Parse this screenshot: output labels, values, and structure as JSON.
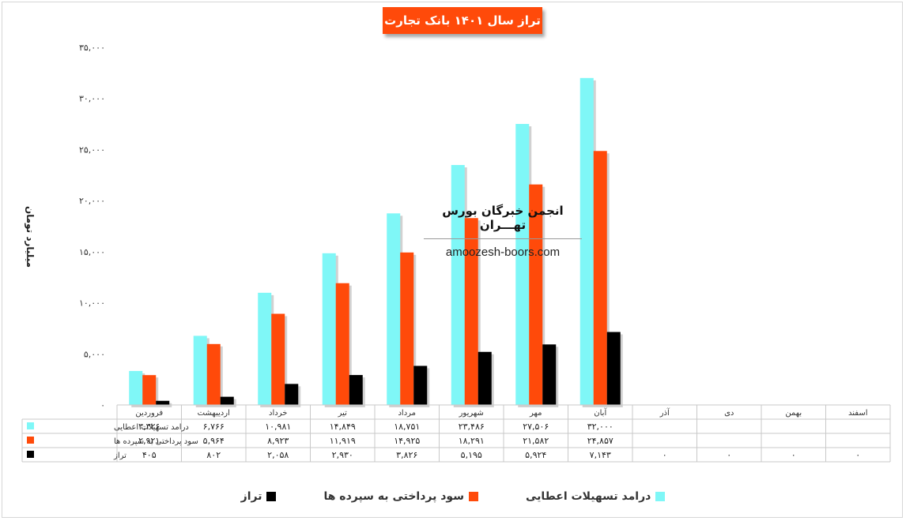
{
  "chart_data": {
    "type": "bar",
    "title": "تراز سال ۱۴۰۱ بانک تجارت",
    "ylabel": "میلیارد تومان",
    "ylim": [
      0,
      35000
    ],
    "yticks": [
      "۰",
      "۵,۰۰۰",
      "۱۰,۰۰۰",
      "۱۵,۰۰۰",
      "۲۰,۰۰۰",
      "۲۵,۰۰۰",
      "۳۰,۰۰۰",
      "۳۵,۰۰۰"
    ],
    "ytick_values": [
      0,
      5000,
      10000,
      15000,
      20000,
      25000,
      30000,
      35000
    ],
    "categories": [
      "فروردین",
      "اردیبهشت",
      "خرداد",
      "تیر",
      "مرداد",
      "شهریور",
      "مهر",
      "آبان",
      "آذر",
      "دی",
      "بهمن",
      "اسفند"
    ],
    "series": [
      {
        "name": "درامد تسهیلات اعطایی",
        "color": "#7ff7f7",
        "values": [
          3326,
          6766,
          10981,
          14849,
          18751,
          23486,
          27506,
          32000,
          null,
          null,
          null,
          null
        ],
        "labels": [
          "۳,۳۲۶",
          "۶,۷۶۶",
          "۱۰,۹۸۱",
          "۱۴,۸۴۹",
          "۱۸,۷۵۱",
          "۲۳,۴۸۶",
          "۲۷,۵۰۶",
          "۳۲,۰۰۰",
          "",
          "",
          "",
          ""
        ]
      },
      {
        "name": "سود پرداختی به سپرده ها",
        "color": "#ff4a0a",
        "values": [
          2921,
          5964,
          8923,
          11919,
          14925,
          18291,
          21582,
          24857,
          null,
          null,
          null,
          null
        ],
        "labels": [
          "۲,۹۲۱",
          "۵,۹۶۴",
          "۸,۹۲۳",
          "۱۱,۹۱۹",
          "۱۴,۹۲۵",
          "۱۸,۲۹۱",
          "۲۱,۵۸۲",
          "۲۴,۸۵۷",
          "",
          "",
          "",
          ""
        ]
      },
      {
        "name": "تراز",
        "color": "#000000",
        "values": [
          405,
          802,
          2058,
          2930,
          3826,
          5195,
          5924,
          7143,
          0,
          0,
          0,
          0
        ],
        "labels": [
          "۴۰۵",
          "۸۰۲",
          "۲,۰۵۸",
          "۲,۹۳۰",
          "۳,۸۲۶",
          "۵,۱۹۵",
          "۵,۹۲۴",
          "۷,۱۴۳",
          "۰",
          "۰",
          "۰",
          "۰"
        ]
      }
    ],
    "legend_position": "bottom",
    "grid": false
  },
  "watermark": {
    "title": "انجمن خبرگان بورس تهـــران",
    "url": "amoozesh-boors.com"
  }
}
